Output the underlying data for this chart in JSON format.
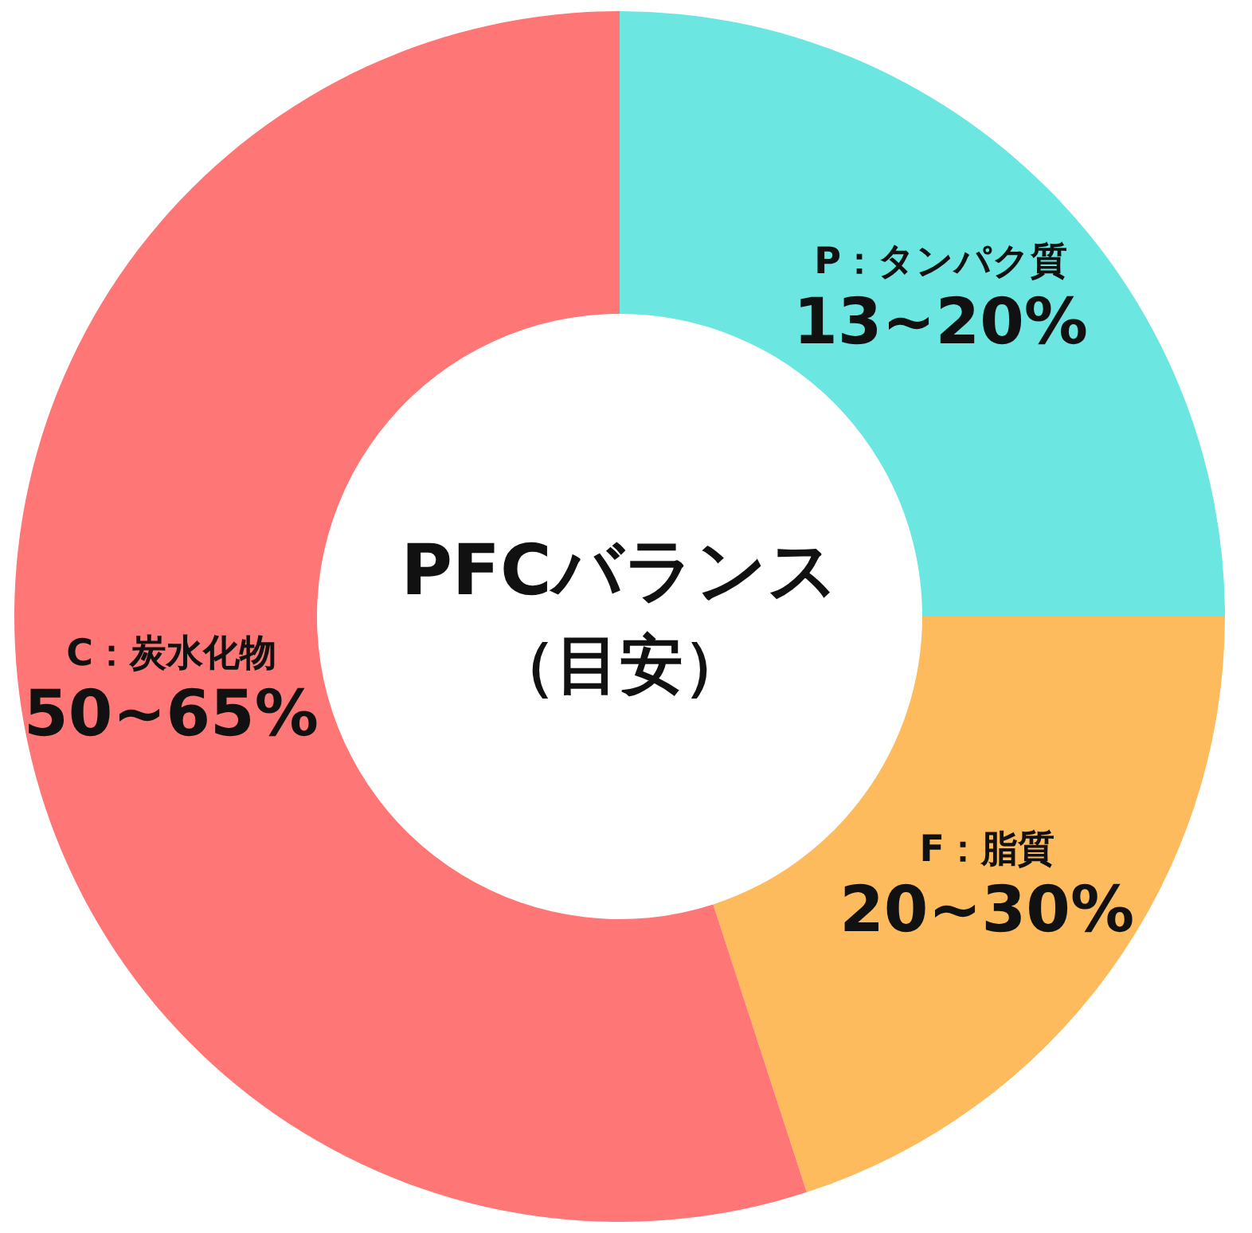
{
  "chart_data": {
    "type": "donut",
    "title": "PFCバランス",
    "subtitle": "（目安）",
    "categories": [
      "P：タンパク質",
      "F：脂質",
      "C：炭水化物"
    ],
    "values": [
      25,
      20,
      55
    ],
    "annotations": [
      "13~20%",
      "20~30%",
      "50~65%"
    ],
    "colors": [
      "#6be6e0",
      "#fdbb5e",
      "#fe7676"
    ]
  }
}
